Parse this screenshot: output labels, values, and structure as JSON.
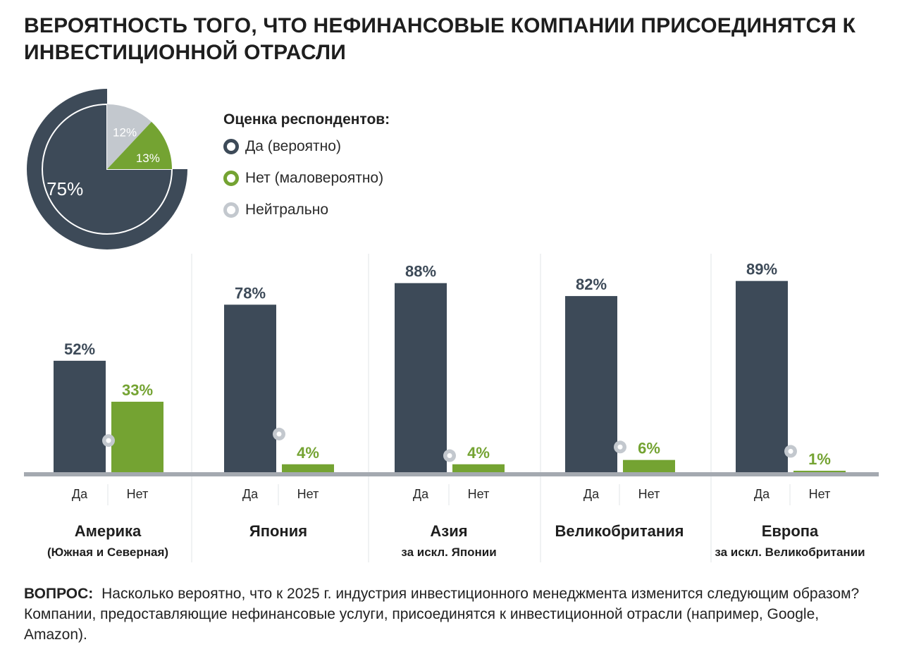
{
  "title": "ВЕРОЯТНОСТЬ ТОГО, ЧТО НЕФИНАНСОВЫЕ КОМПАНИИ ПРИСОЕДИНЯТСЯ К ИНВЕСТИЦИОННОЙ ОТРАСЛИ",
  "legend": {
    "title": "Оценка респондентов:",
    "items": [
      {
        "label": "Да (вероятно)",
        "color": "#3d4a58"
      },
      {
        "label": "Нет (маловероятно)",
        "color": "#74a332"
      },
      {
        "label": "Нейтрально",
        "color": "#c3c8ce"
      }
    ]
  },
  "question": {
    "label": "ВОПРОС:",
    "text": "Насколько вероятно, что к 2025 г. индустрия инвестиционного менеджмента изменится следующим образом? Компании, предоставляющие нефинансовые услуги, присоединятся к инвестиционной отрасли (например, Google, Amazon)."
  },
  "chart_data": [
    {
      "type": "pie",
      "slices": [
        {
          "label": "Да (вероятно)",
          "value": 75,
          "display": "75%",
          "color": "#3d4a58"
        },
        {
          "label": "Нейтрально",
          "value": 12,
          "display": "12%",
          "color": "#c3c8ce"
        },
        {
          "label": "Нет (маловероятно)",
          "value": 13,
          "display": "13%",
          "color": "#74a332"
        }
      ]
    },
    {
      "type": "bar",
      "xlabels": [
        "Да",
        "Нет"
      ],
      "ylim": [
        0,
        100
      ],
      "series": [
        {
          "name": "Да (вероятно)",
          "color": "#3d4a58"
        },
        {
          "name": "Нет (маловероятно)",
          "color": "#74a332"
        },
        {
          "name": "Нейтрально",
          "color": "#c3c8ce"
        }
      ],
      "groups": [
        {
          "name": "Америка",
          "sub": "(Южная и Северная)",
          "yes": 52,
          "no": 33,
          "neutral": 15,
          "yes_label": "52%",
          "no_label": "33%"
        },
        {
          "name": "Япония",
          "sub": "",
          "yes": 78,
          "no": 4,
          "neutral": 18,
          "yes_label": "78%",
          "no_label": "4%"
        },
        {
          "name": "Азия",
          "sub": "за искл. Японии",
          "yes": 88,
          "no": 4,
          "neutral": 8,
          "yes_label": "88%",
          "no_label": "4%"
        },
        {
          "name": "Великобритания",
          "sub": "",
          "yes": 82,
          "no": 6,
          "neutral": 12,
          "yes_label": "82%",
          "no_label": "6%"
        },
        {
          "name": "Европа",
          "sub": "за искл. Великобритании",
          "yes": 89,
          "no": 1,
          "neutral": 10,
          "yes_label": "89%",
          "no_label": "1%"
        }
      ]
    }
  ]
}
